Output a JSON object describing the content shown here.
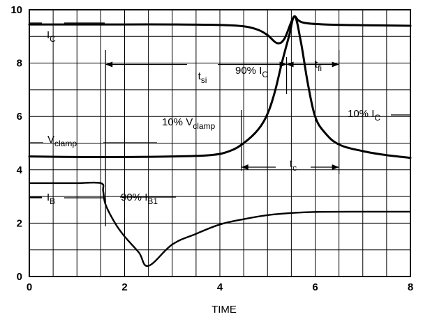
{
  "chart_data": {
    "type": "line",
    "xlabel": "TIME",
    "ylabel": "",
    "xlim": [
      0,
      8
    ],
    "ylim": [
      0,
      10
    ],
    "x_ticks": [
      "0",
      "2",
      "4",
      "6",
      "8"
    ],
    "y_ticks": [
      "0",
      "2",
      "4",
      "6",
      "8",
      "10"
    ],
    "grid": true,
    "series": [
      {
        "name": "IC",
        "x": [
          0,
          1,
          2,
          3,
          4,
          4.5,
          4.8,
          5.0,
          5.2,
          5.35,
          5.5,
          5.57,
          5.65,
          5.8,
          6.2,
          7,
          8
        ],
        "y": [
          9.45,
          9.45,
          9.45,
          9.45,
          9.43,
          9.38,
          9.25,
          9.05,
          8.75,
          8.9,
          9.55,
          9.75,
          9.6,
          9.5,
          9.45,
          9.42,
          9.4
        ]
      },
      {
        "name": "Vclamp",
        "x": [
          0,
          1,
          2,
          3,
          3.8,
          4.2,
          4.5,
          4.8,
          5.0,
          5.15,
          5.3,
          5.45,
          5.57,
          5.7,
          5.85,
          6.0,
          6.2,
          6.5,
          7,
          7.5,
          8
        ],
        "y": [
          4.5,
          4.48,
          4.48,
          4.5,
          4.55,
          4.7,
          5.0,
          5.5,
          6.1,
          6.9,
          8.0,
          9.0,
          9.75,
          8.8,
          7.2,
          6.0,
          5.4,
          4.95,
          4.7,
          4.55,
          4.45
        ]
      },
      {
        "name": "IB",
        "x": [
          0,
          0.5,
          1.0,
          1.5,
          1.55,
          1.6,
          1.8,
          2.0,
          2.3,
          2.5,
          3.0,
          3.5,
          4.0,
          4.5,
          5.0,
          5.5,
          6.0,
          7.0,
          8.0
        ],
        "y": [
          3.5,
          3.5,
          3.5,
          3.5,
          3.2,
          2.7,
          2.0,
          1.5,
          0.9,
          0.4,
          1.2,
          1.6,
          1.95,
          2.15,
          2.3,
          2.38,
          2.42,
          2.43,
          2.43
        ]
      }
    ],
    "annotations": {
      "ic_label": {
        "main": "I",
        "sub": "C"
      },
      "vclamp_label": {
        "main": "V",
        "sub": "clamp"
      },
      "ib_label": {
        "main": "I",
        "sub": "B"
      },
      "tsi": {
        "main": "t",
        "sub": "si",
        "x_from": 1.6,
        "x_to": 5.4,
        "y": 7.95
      },
      "tfi": {
        "main": "t",
        "sub": "fi",
        "x_from": 5.4,
        "x_to": 6.5,
        "y": 7.95
      },
      "tc": {
        "main": "t",
        "sub": "c",
        "x_from": 4.45,
        "x_to": 6.5,
        "y": 4.1
      },
      "pct90_ic": {
        "prefix": "90% I",
        "sub": "C"
      },
      "pct10_vclamp": {
        "prefix": "10% V",
        "sub": "clamp"
      },
      "pct10_ic": {
        "prefix": "10% I",
        "sub": "C"
      },
      "pct90_ib1": {
        "prefix": "90% I",
        "sub": "B1"
      }
    }
  }
}
